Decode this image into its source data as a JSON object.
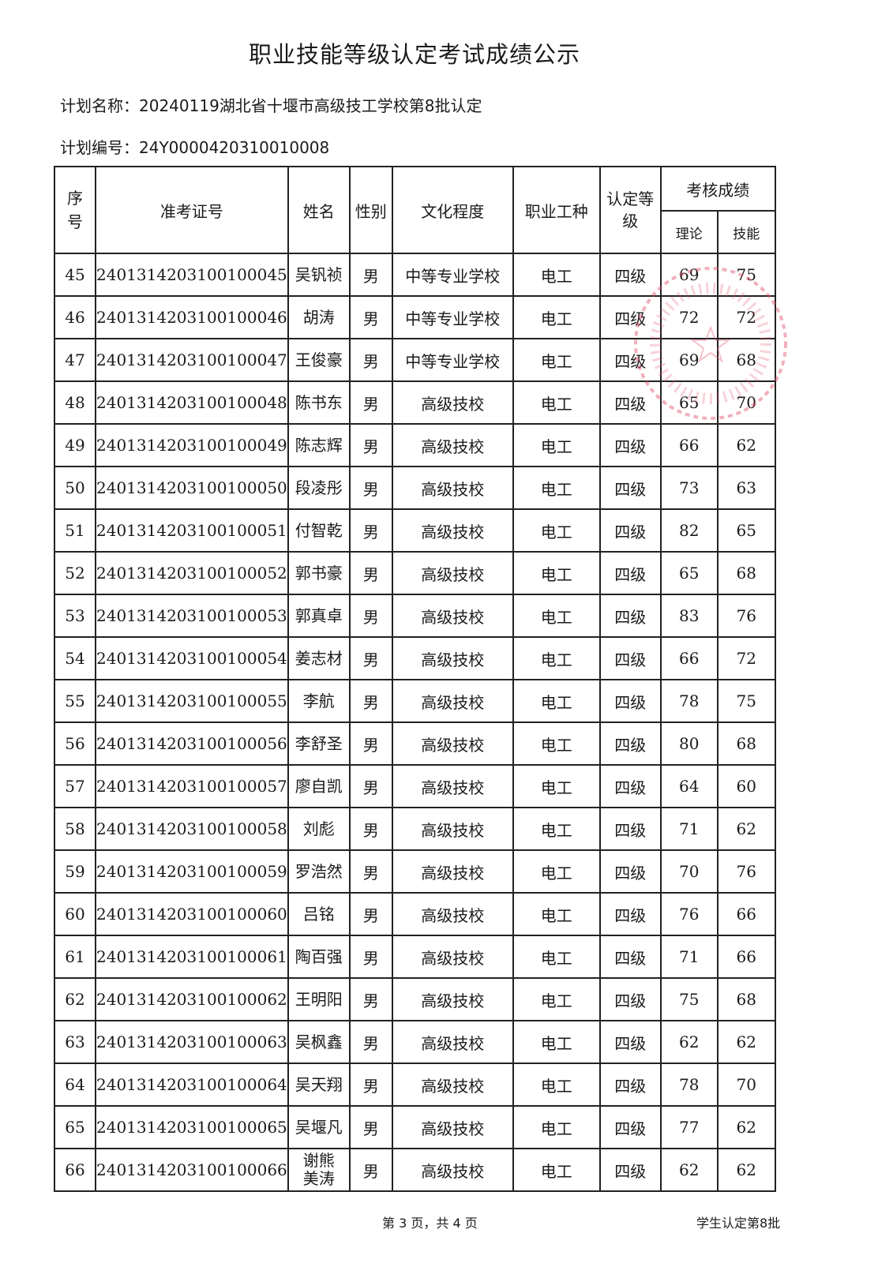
{
  "title": "职业技能等级认定考试成绩公示",
  "plan_name": "计划名称：20240119湖北省十堰市高级技工学校第8批认定",
  "plan_number": "计划编号：24Y0000420310010008",
  "headers": {
    "seq": "序号",
    "ticket": "准考证号",
    "name": "姓名",
    "gender": "性别",
    "education": "文化程度",
    "occupation": "职业工种",
    "level": "认定等级",
    "scores": "考核成绩",
    "theory": "理论",
    "skill": "技能"
  },
  "rows": [
    [
      "45",
      "2401314203100100045",
      "吴钒祯",
      "男",
      "中等专业学校",
      "电工",
      "四级",
      "69",
      "75"
    ],
    [
      "46",
      "2401314203100100046",
      "胡涛",
      "男",
      "中等专业学校",
      "电工",
      "四级",
      "72",
      "72"
    ],
    [
      "47",
      "2401314203100100047",
      "王俊豪",
      "男",
      "中等专业学校",
      "电工",
      "四级",
      "69",
      "68"
    ],
    [
      "48",
      "2401314203100100048",
      "陈书东",
      "男",
      "高级技校",
      "电工",
      "四级",
      "65",
      "70"
    ],
    [
      "49",
      "2401314203100100049",
      "陈志辉",
      "男",
      "高级技校",
      "电工",
      "四级",
      "66",
      "62"
    ],
    [
      "50",
      "2401314203100100050",
      "段凌彤",
      "男",
      "高级技校",
      "电工",
      "四级",
      "73",
      "63"
    ],
    [
      "51",
      "2401314203100100051",
      "付智乾",
      "男",
      "高级技校",
      "电工",
      "四级",
      "82",
      "65"
    ],
    [
      "52",
      "2401314203100100052",
      "郭书豪",
      "男",
      "高级技校",
      "电工",
      "四级",
      "65",
      "68"
    ],
    [
      "53",
      "2401314203100100053",
      "郭真卓",
      "男",
      "高级技校",
      "电工",
      "四级",
      "83",
      "76"
    ],
    [
      "54",
      "2401314203100100054",
      "姜志材",
      "男",
      "高级技校",
      "电工",
      "四级",
      "66",
      "72"
    ],
    [
      "55",
      "2401314203100100055",
      "李航",
      "男",
      "高级技校",
      "电工",
      "四级",
      "78",
      "75"
    ],
    [
      "56",
      "2401314203100100056",
      "李舒圣",
      "男",
      "高级技校",
      "电工",
      "四级",
      "80",
      "68"
    ],
    [
      "57",
      "2401314203100100057",
      "廖自凯",
      "男",
      "高级技校",
      "电工",
      "四级",
      "64",
      "60"
    ],
    [
      "58",
      "2401314203100100058",
      "刘彪",
      "男",
      "高级技校",
      "电工",
      "四级",
      "71",
      "62"
    ],
    [
      "59",
      "2401314203100100059",
      "罗浩然",
      "男",
      "高级技校",
      "电工",
      "四级",
      "70",
      "76"
    ],
    [
      "60",
      "2401314203100100060",
      "吕铭",
      "男",
      "高级技校",
      "电工",
      "四级",
      "76",
      "66"
    ],
    [
      "61",
      "2401314203100100061",
      "陶百强",
      "男",
      "高级技校",
      "电工",
      "四级",
      "71",
      "66"
    ],
    [
      "62",
      "2401314203100100062",
      "王明阳",
      "男",
      "高级技校",
      "电工",
      "四级",
      "75",
      "68"
    ],
    [
      "63",
      "2401314203100100063",
      "吴枫鑫",
      "男",
      "高级技校",
      "电工",
      "四级",
      "62",
      "62"
    ],
    [
      "64",
      "2401314203100100064",
      "吴天翔",
      "男",
      "高级技校",
      "电工",
      "四级",
      "78",
      "70"
    ],
    [
      "65",
      "2401314203100100065",
      "吴堰凡",
      "男",
      "高级技校",
      "电工",
      "四级",
      "77",
      "62"
    ],
    [
      "66",
      "2401314203100100066",
      "谢熊美涛",
      "男",
      "高级技校",
      "电工",
      "四级",
      "62",
      "62"
    ]
  ],
  "footer": {
    "page": "第 3 页，共 4 页",
    "batch": "学生认定第8批"
  },
  "stamp_color": "#e0506a"
}
